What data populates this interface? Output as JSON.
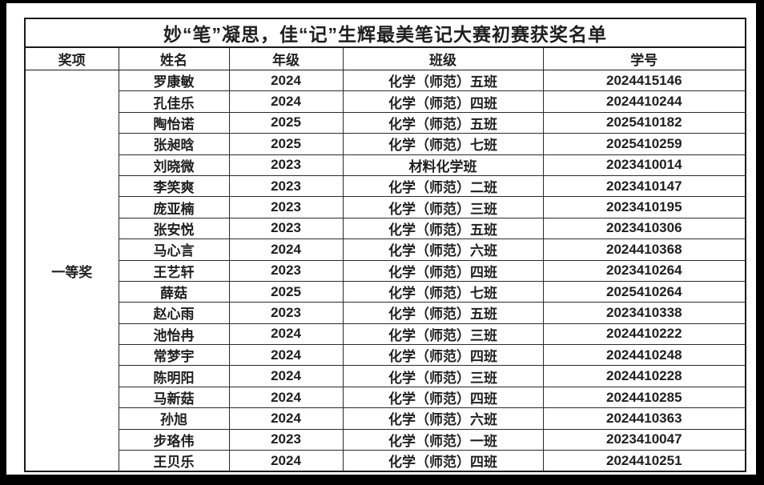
{
  "page": {
    "title": "妙“笔”凝思，佳“记”生辉最美笔记大赛初赛获奖名单"
  },
  "table": {
    "columns": [
      "奖项",
      "姓名",
      "年级",
      "班级",
      "学号"
    ],
    "award_group": "一等奖",
    "rows": [
      {
        "name": "罗康敏",
        "grade": "2024",
        "class": "化学（师范）五班",
        "student_id": "2024415146"
      },
      {
        "name": "孔佳乐",
        "grade": "2024",
        "class": "化学（师范）四班",
        "student_id": "2024410244"
      },
      {
        "name": "陶怡诺",
        "grade": "2025",
        "class": "化学（师范）五班",
        "student_id": "2025410182"
      },
      {
        "name": "张昶晗",
        "grade": "2025",
        "class": "化学（师范）七班",
        "student_id": "2025410259"
      },
      {
        "name": "刘晓微",
        "grade": "2023",
        "class": "材料化学班",
        "student_id": "2023410014"
      },
      {
        "name": "李笑爽",
        "grade": "2023",
        "class": "化学（师范）二班",
        "student_id": "2023410147"
      },
      {
        "name": "庞亚楠",
        "grade": "2023",
        "class": "化学（师范）三班",
        "student_id": "2023410195"
      },
      {
        "name": "张安悦",
        "grade": "2023",
        "class": "化学（师范）五班",
        "student_id": "2023410306"
      },
      {
        "name": "马心言",
        "grade": "2024",
        "class": "化学（师范）六班",
        "student_id": "2024410368"
      },
      {
        "name": "王艺轩",
        "grade": "2023",
        "class": "化学（师范）四班",
        "student_id": "2023410264"
      },
      {
        "name": "薛菇",
        "grade": "2025",
        "class": "化学（师范）七班",
        "student_id": "2025410264"
      },
      {
        "name": "赵心雨",
        "grade": "2023",
        "class": "化学（师范）五班",
        "student_id": "2023410338"
      },
      {
        "name": "池怡冉",
        "grade": "2024",
        "class": "化学（师范）三班",
        "student_id": "2024410222"
      },
      {
        "name": "常梦宇",
        "grade": "2024",
        "class": "化学（师范）四班",
        "student_id": "2024410248"
      },
      {
        "name": "陈明阳",
        "grade": "2024",
        "class": "化学（师范）三班",
        "student_id": "2024410228"
      },
      {
        "name": "马新菇",
        "grade": "2024",
        "class": "化学（师范）四班",
        "student_id": "2024410285"
      },
      {
        "name": "孙旭",
        "grade": "2024",
        "class": "化学（师范）六班",
        "student_id": "2024410363"
      },
      {
        "name": "步珞伟",
        "grade": "2023",
        "class": "化学（师范）一班",
        "student_id": "2023410047"
      },
      {
        "name": "王贝乐",
        "grade": "2024",
        "class": "化学（师范）四班",
        "student_id": "2024410251"
      }
    ]
  }
}
